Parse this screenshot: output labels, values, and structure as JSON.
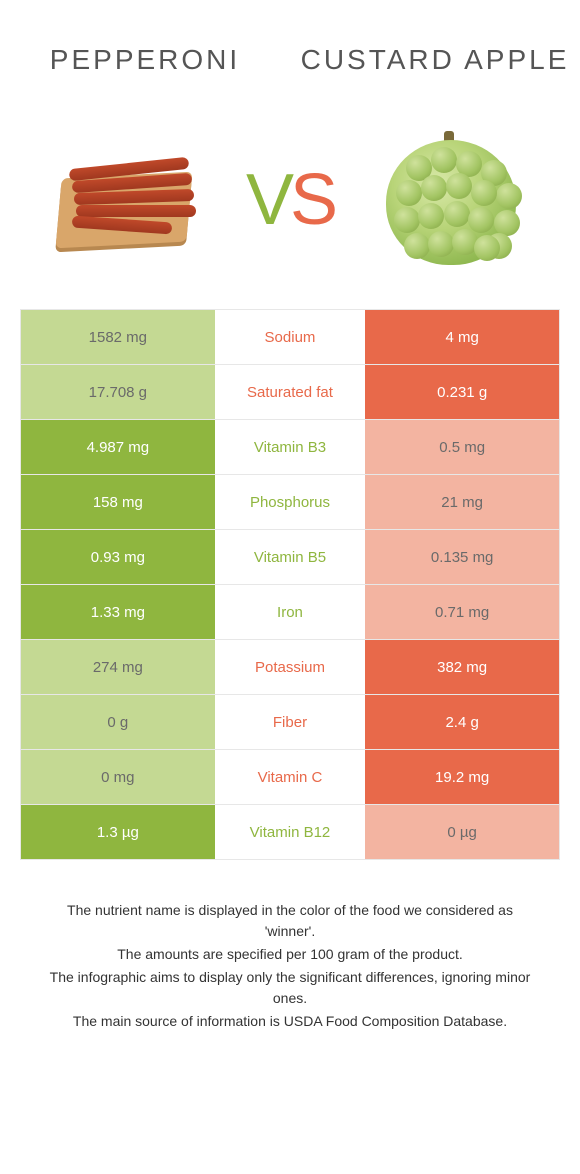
{
  "colors": {
    "green": "#8fb63f",
    "orange": "#e8694a",
    "lightgreen": "#c4d993",
    "lightorange": "#f3b4a1",
    "muted_text": "#6a6a6a"
  },
  "foods": {
    "left": {
      "name": "PEPPERONI"
    },
    "right": {
      "name": "CUSTARD APPLE"
    }
  },
  "vs_label": {
    "v": "V",
    "s": "S"
  },
  "rows": [
    {
      "left": "1582 mg",
      "label": "Sodium",
      "right": "4 mg",
      "winner": "right"
    },
    {
      "left": "17.708 g",
      "label": "Saturated fat",
      "right": "0.231 g",
      "winner": "right"
    },
    {
      "left": "4.987 mg",
      "label": "Vitamin B3",
      "right": "0.5 mg",
      "winner": "left"
    },
    {
      "left": "158 mg",
      "label": "Phosphorus",
      "right": "21 mg",
      "winner": "left"
    },
    {
      "left": "0.93 mg",
      "label": "Vitamin B5",
      "right": "0.135 mg",
      "winner": "left"
    },
    {
      "left": "1.33 mg",
      "label": "Iron",
      "right": "0.71 mg",
      "winner": "left"
    },
    {
      "left": "274 mg",
      "label": "Potassium",
      "right": "382 mg",
      "winner": "right"
    },
    {
      "left": "0 g",
      "label": "Fiber",
      "right": "2.4 g",
      "winner": "right"
    },
    {
      "left": "0 mg",
      "label": "Vitamin C",
      "right": "19.2 mg",
      "winner": "right"
    },
    {
      "left": "1.3 µg",
      "label": "Vitamin B12",
      "right": "0 µg",
      "winner": "left"
    }
  ],
  "footnotes": [
    "The nutrient name is displayed in the color of the food we considered as 'winner'.",
    "The amounts are specified per 100 gram of the product.",
    "The infographic aims to display only the significant differences, ignoring minor ones.",
    "The main source of information is USDA Food Composition Database."
  ]
}
